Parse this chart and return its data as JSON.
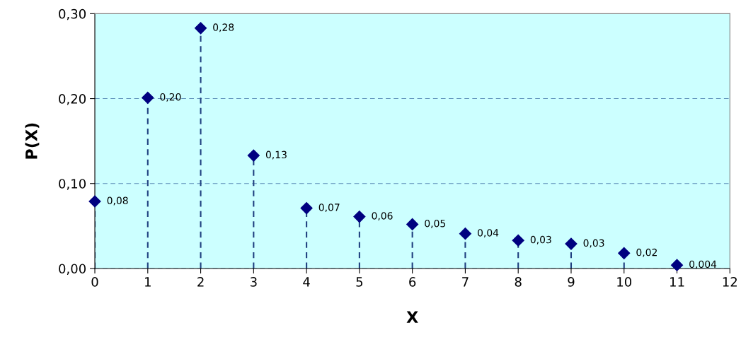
{
  "chart_data": {
    "type": "lollipop",
    "xlabel": "X",
    "ylabel": "P(X)",
    "x": [
      0,
      1,
      2,
      3,
      4,
      5,
      6,
      7,
      8,
      9,
      10,
      11
    ],
    "values": [
      0.079,
      0.201,
      0.283,
      0.133,
      0.071,
      0.061,
      0.052,
      0.041,
      0.033,
      0.029,
      0.018,
      0.004
    ],
    "value_labels": [
      "0,08",
      "0,20",
      "0,28",
      "0,13",
      "0,07",
      "0,06",
      "0,05",
      "0,04",
      "0,03",
      "0,03",
      "0,02",
      "0,004"
    ],
    "color": "#000080",
    "xlim": [
      0,
      12
    ],
    "xticks": [
      0,
      1,
      2,
      3,
      4,
      5,
      6,
      7,
      8,
      9,
      10,
      11,
      12
    ],
    "ylim": [
      0,
      0.3
    ],
    "yticks": [
      {
        "value": 0,
        "label": "0,00"
      },
      {
        "value": 0.1,
        "label": "0,10"
      },
      {
        "value": 0.2,
        "label": "0,20"
      },
      {
        "value": 0.3,
        "label": "0,30"
      }
    ],
    "grid": "y",
    "marker": "diamond",
    "line_style": "dashed"
  }
}
